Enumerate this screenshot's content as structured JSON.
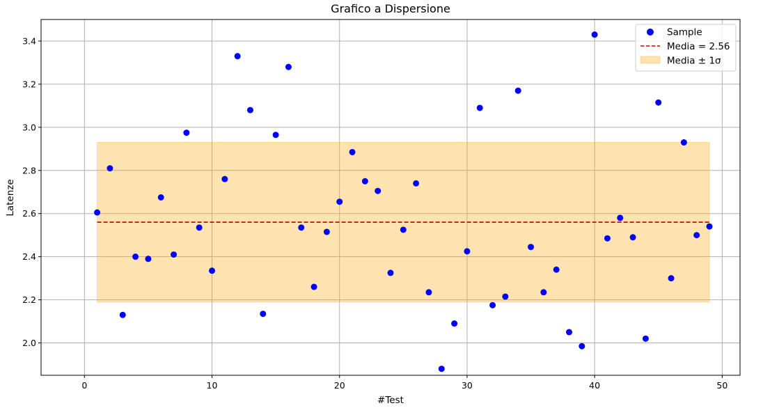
{
  "chart_data": {
    "type": "scatter",
    "title": "Grafico a Dispersione",
    "xlabel": "#Test",
    "ylabel": "Latenze",
    "xlim": [
      -3.4,
      51.4
    ],
    "ylim": [
      1.85,
      3.5
    ],
    "xticks": [
      0,
      10,
      20,
      30,
      40,
      50
    ],
    "yticks": [
      2.0,
      2.2,
      2.4,
      2.6,
      2.8,
      3.0,
      3.2,
      3.4
    ],
    "xtick_labels": [
      "0",
      "10",
      "20",
      "30",
      "40",
      "50"
    ],
    "ytick_labels": [
      "2.0",
      "2.2",
      "2.4",
      "2.6",
      "2.8",
      "3.0",
      "3.2",
      "3.4"
    ],
    "grid": true,
    "legend_position": "top-right",
    "series": [
      {
        "name": "Sample",
        "color": "#0000ff",
        "x": [
          1,
          2,
          3,
          4,
          5,
          6,
          7,
          8,
          9,
          10,
          11,
          12,
          13,
          14,
          15,
          16,
          17,
          18,
          19,
          20,
          21,
          22,
          23,
          24,
          25,
          26,
          27,
          28,
          29,
          30,
          31,
          32,
          33,
          34,
          35,
          36,
          37,
          38,
          39,
          40,
          41,
          42,
          43,
          44,
          45,
          46,
          47,
          48,
          49
        ],
        "y": [
          2.605,
          2.81,
          2.13,
          2.4,
          2.39,
          2.675,
          2.41,
          2.975,
          2.535,
          2.335,
          2.76,
          3.33,
          3.08,
          2.135,
          2.965,
          3.28,
          2.535,
          2.26,
          2.515,
          2.655,
          2.885,
          2.75,
          2.705,
          2.325,
          2.525,
          2.74,
          2.235,
          1.88,
          2.09,
          2.425,
          3.09,
          2.175,
          2.215,
          3.17,
          2.445,
          2.235,
          2.34,
          2.05,
          1.985,
          3.43,
          2.485,
          2.58,
          2.49,
          2.02,
          3.115,
          2.3,
          2.93,
          2.5,
          2.54
        ]
      }
    ],
    "mean": {
      "name": "Media = 2.56",
      "value": 2.56,
      "color": "#dd0000",
      "x_range": [
        1,
        49
      ]
    },
    "band": {
      "name": "Media ± 1σ",
      "lower": 2.19,
      "upper": 2.93,
      "color": "#ffa500",
      "x_range": [
        1,
        49
      ]
    }
  }
}
